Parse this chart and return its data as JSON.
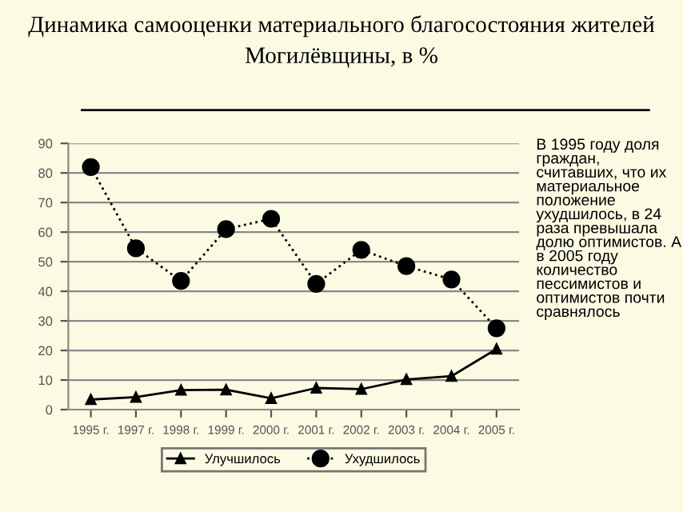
{
  "chart_data": {
    "type": "line",
    "title": "Динамика самооценки материального благосостояния жителей Могилёвщины, в %",
    "categories": [
      "1995 г.",
      "1997 г.",
      "1998 г.",
      "1999 г.",
      "2000 г.",
      "2001 г.",
      "2002 г.",
      "2003 г.",
      "2004 г.",
      "2005 г."
    ],
    "series": [
      {
        "name": "Улучшилось",
        "color": "#000000",
        "marker": "triangle",
        "line_style": "solid",
        "values": [
          3.4,
          4.2,
          6.6,
          6.7,
          3.8,
          7.3,
          6.9,
          10.2,
          11.3,
          20.5
        ]
      },
      {
        "name": "Ухудшилось",
        "color": "#000000",
        "marker": "circle",
        "line_style": "dotted",
        "values": [
          82,
          54.5,
          43.5,
          61,
          64.5,
          42.5,
          54,
          48.5,
          44,
          27.5
        ]
      }
    ],
    "ylim": [
      0,
      90
    ],
    "yticks": [
      0,
      10,
      20,
      30,
      40,
      50,
      60,
      70,
      80,
      90
    ],
    "grid": "y",
    "legend": "bottom",
    "annotations": [
      "В 1995 году доля граждан, считавших, что их материальное положение ухудшилось, в 24 раза превышала долю оптимистов. А в 2005 году количество пессимистов и оптимистов почти сравнялось"
    ]
  }
}
